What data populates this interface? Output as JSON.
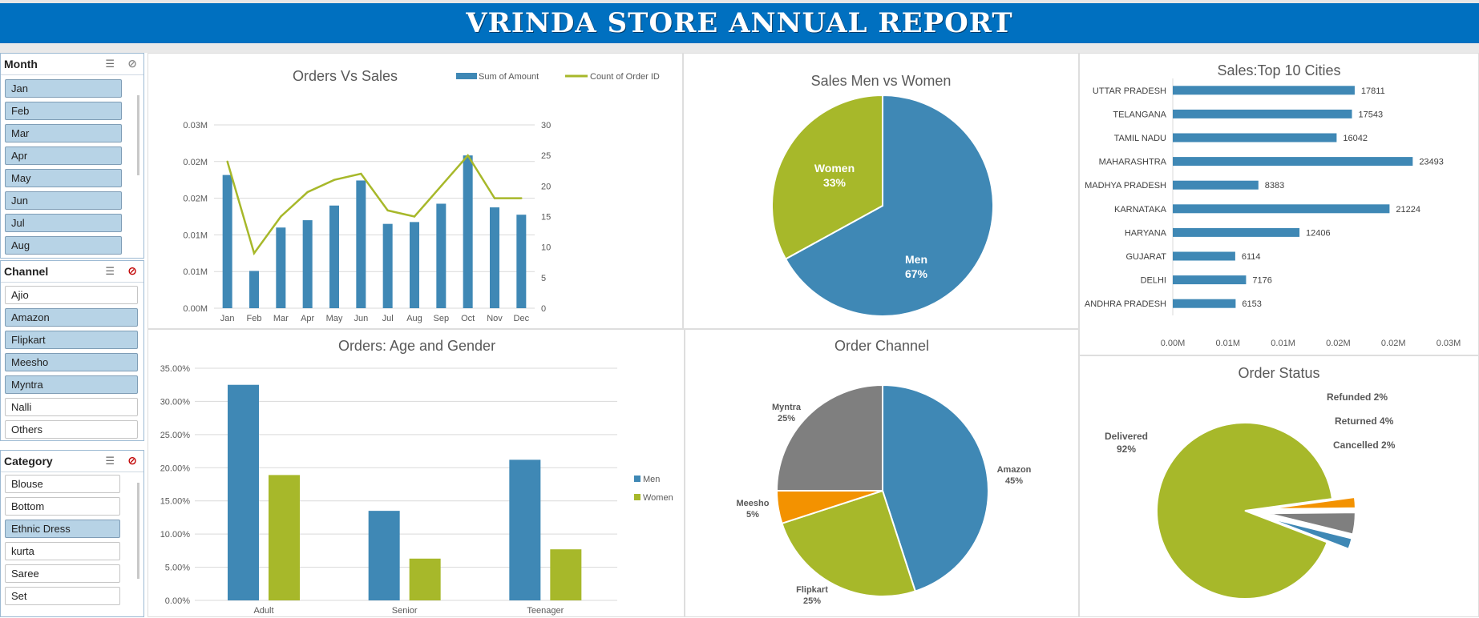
{
  "title": "VRINDA STORE ANNUAL REPORT",
  "colors": {
    "blue": "#3f88b5",
    "green": "#a7b82a",
    "gray": "#7f7f7f",
    "orange": "#f39200",
    "banner": "#0070c0"
  },
  "slicers": {
    "month": {
      "title": "Month",
      "items": [
        {
          "label": "Jan",
          "selected": true
        },
        {
          "label": "Feb",
          "selected": true
        },
        {
          "label": "Mar",
          "selected": true
        },
        {
          "label": "Apr",
          "selected": true
        },
        {
          "label": "May",
          "selected": true
        },
        {
          "label": "Jun",
          "selected": true
        },
        {
          "label": "Jul",
          "selected": true
        },
        {
          "label": "Aug",
          "selected": true
        }
      ]
    },
    "channel": {
      "title": "Channel",
      "items": [
        {
          "label": "Ajio",
          "selected": false
        },
        {
          "label": "Amazon",
          "selected": true
        },
        {
          "label": "Flipkart",
          "selected": true
        },
        {
          "label": "Meesho",
          "selected": true
        },
        {
          "label": "Myntra",
          "selected": true
        },
        {
          "label": "Nalli",
          "selected": false
        },
        {
          "label": "Others",
          "selected": false
        }
      ]
    },
    "category": {
      "title": "Category",
      "items": [
        {
          "label": "Blouse",
          "selected": false
        },
        {
          "label": "Bottom",
          "selected": false
        },
        {
          "label": "Ethnic Dress",
          "selected": true
        },
        {
          "label": "kurta",
          "selected": false
        },
        {
          "label": "Saree",
          "selected": false
        },
        {
          "label": "Set",
          "selected": false
        }
      ]
    }
  },
  "chart_data": [
    {
      "type": "bar+line",
      "title": "Orders Vs Sales",
      "categories": [
        "Jan",
        "Feb",
        "Mar",
        "Apr",
        "May",
        "Jun",
        "Jul",
        "Aug",
        "Sep",
        "Oct",
        "Nov",
        "Dec"
      ],
      "series": [
        {
          "name": "Sum of Amount",
          "axis": "left",
          "values": [
            0.0218,
            0.0061,
            0.0132,
            0.0144,
            0.0168,
            0.0209,
            0.0138,
            0.0141,
            0.0171,
            0.025,
            0.0165,
            0.0153
          ]
        },
        {
          "name": "Count of Order ID",
          "axis": "right",
          "values": [
            24,
            9,
            15,
            19,
            21,
            22,
            16,
            15,
            20,
            25,
            18,
            18
          ]
        }
      ],
      "y_ticks": [
        "0.00M",
        "0.01M",
        "0.01M",
        "0.02M",
        "0.02M",
        "0.03M"
      ],
      "ylim": [
        0,
        0.03
      ],
      "y2_ticks": [
        "0",
        "5",
        "10",
        "15",
        "20",
        "25",
        "30"
      ],
      "y2lim": [
        0,
        30
      ],
      "legend": "top-right"
    },
    {
      "type": "pie",
      "title": "Sales Men vs Women",
      "labels": [
        "Men",
        "Women"
      ],
      "values": [
        67,
        33
      ],
      "value_labels": [
        "67%",
        "33%"
      ]
    },
    {
      "type": "bar",
      "orientation": "horizontal",
      "title": "Sales:Top 10 Cities",
      "categories": [
        "UTTAR PRADESH",
        "TELANGANA",
        "TAMIL NADU",
        "MAHARASHTRA",
        "MADHYA PRADESH",
        "KARNATAKA",
        "HARYANA",
        "GUJARAT",
        "DELHI",
        "ANDHRA PRADESH"
      ],
      "values": [
        17811,
        17543,
        16042,
        23493,
        8383,
        21224,
        12406,
        6114,
        7176,
        6153
      ],
      "x_ticks": [
        "0.00M",
        "0.01M",
        "0.01M",
        "0.02M",
        "0.02M",
        "0.03M"
      ],
      "xlim": [
        0,
        27000
      ]
    },
    {
      "type": "bar",
      "title": "Orders: Age and Gender",
      "categories": [
        "Adult",
        "Senior",
        "Teenager"
      ],
      "series": [
        {
          "name": "Men",
          "values": [
            32.5,
            13.5,
            21.2
          ]
        },
        {
          "name": "Women",
          "values": [
            18.9,
            6.3,
            7.7
          ]
        }
      ],
      "y_ticks": [
        "0.00%",
        "5.00%",
        "10.00%",
        "15.00%",
        "20.00%",
        "25.00%",
        "30.00%",
        "35.00%"
      ],
      "ylim": [
        0,
        35
      ],
      "legend": "right"
    },
    {
      "type": "pie",
      "title": "Order Channel",
      "labels": [
        "Amazon",
        "Flipkart",
        "Meesho",
        "Myntra"
      ],
      "values": [
        45,
        25,
        5,
        25
      ],
      "value_labels": [
        "45%",
        "25%",
        "5%",
        "25%"
      ]
    },
    {
      "type": "pie",
      "title": "Order Status",
      "labels": [
        "Delivered",
        "Refunded",
        "Returned",
        "Cancelled"
      ],
      "values": [
        92,
        2,
        4,
        2
      ],
      "value_labels": [
        "92%",
        "2%",
        "4%",
        "2%"
      ]
    }
  ]
}
